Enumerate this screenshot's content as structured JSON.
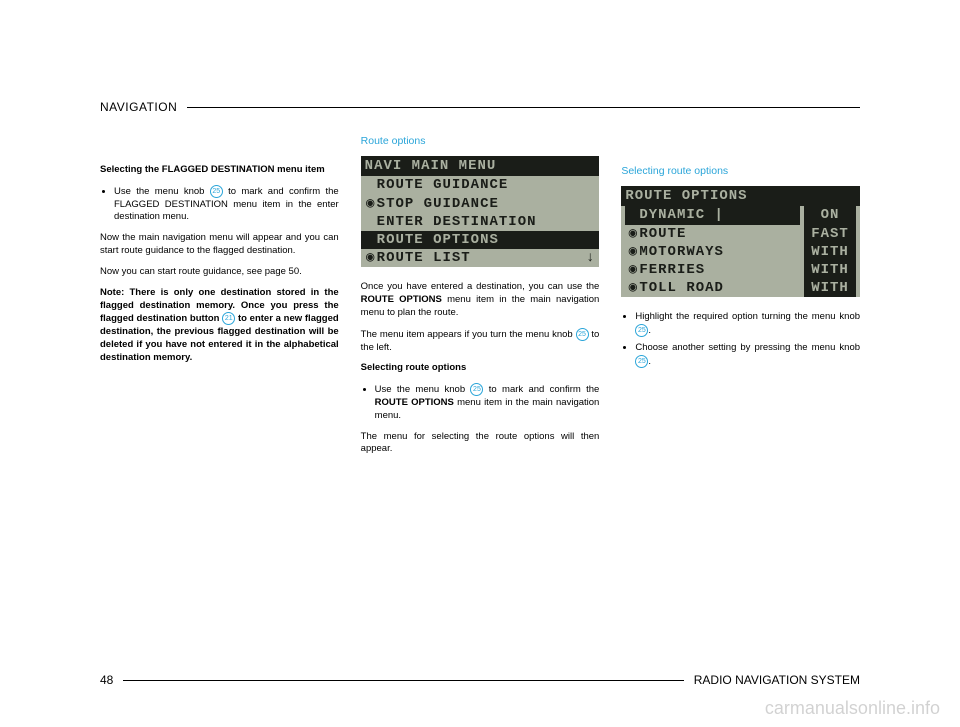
{
  "header": {
    "label": "NAVIGATION"
  },
  "footer": {
    "page": "48",
    "label": "RADIO NAVIGATION SYSTEM"
  },
  "watermark": "carmanualsonline.info",
  "knob": {
    "n25": "25",
    "n21": "21"
  },
  "col1": {
    "h1": "Selecting the FLAGGED DESTINATION menu item",
    "b1a": "Use the menu knob ",
    "b1b": " to mark and confirm the FLAGGED DESTINATION menu item in the enter destination menu.",
    "p2": "Now the main navigation menu will appear and you can start route guidance to the flagged destination.",
    "p3": "Now you can start route guidance, see page 50.",
    "p4a": "Note: There is only one destination stored in the flagged destination memory. Once you press the flagged destination button ",
    "p4b": " to enter a new flagged destination, the previous flagged destination will be deleted if you have not entered it in the alphabetical destination memory."
  },
  "col2": {
    "heading": "Route options",
    "screen": {
      "title": "NAVI MAIN MENU",
      "rows": [
        {
          "lock": " ",
          "text": "ROUTE GUIDANCE",
          "hl": false
        },
        {
          "lock": "◉",
          "text": "STOP GUIDANCE",
          "hl": false
        },
        {
          "lock": " ",
          "text": "ENTER DESTINATION",
          "hl": false
        },
        {
          "lock": " ",
          "text": "ROUTE OPTIONS",
          "hl": true
        },
        {
          "lock": "◉",
          "text": "ROUTE LIST",
          "hl": false,
          "arrow": "↓"
        }
      ]
    },
    "p1a": "Once you have entered a destination, you can use the ",
    "p1bold": "ROUTE OPTIONS",
    "p1b": " menu item in the main navigation menu to plan the route.",
    "p2a": "The menu item appears if you turn the menu knob ",
    "p2b": " to the left.",
    "h2": "Selecting route options",
    "b1a": "Use the menu knob ",
    "b1b": " to mark and confirm the ",
    "b1bold": "ROUTE OPTIONS",
    "b1c": " menu item in the main navigation menu.",
    "p3": "The menu for selecting the route options will then appear."
  },
  "col3": {
    "heading": "Selecting route options",
    "screen": {
      "title": "ROUTE OPTIONS",
      "rows": [
        {
          "lock": " ",
          "label": "DYNAMIC",
          "sep": "|",
          "val": "ON",
          "hl": true
        },
        {
          "lock": "◉",
          "label": "ROUTE",
          "sep": " ",
          "val": "FAST",
          "hl": false
        },
        {
          "lock": "◉",
          "label": "MOTORWAYS",
          "sep": " ",
          "val": "WITH",
          "hl": false
        },
        {
          "lock": "◉",
          "label": "FERRIES",
          "sep": " ",
          "val": "WITH",
          "hl": false
        },
        {
          "lock": "◉",
          "label": "TOLL ROAD",
          "sep": " ",
          "val": "WITH",
          "hl": false
        }
      ]
    },
    "b1a": "Highlight the required option turning the menu knob ",
    "b1b": ".",
    "b2a": "Choose another setting by pressing the menu knob ",
    "b2b": "."
  }
}
